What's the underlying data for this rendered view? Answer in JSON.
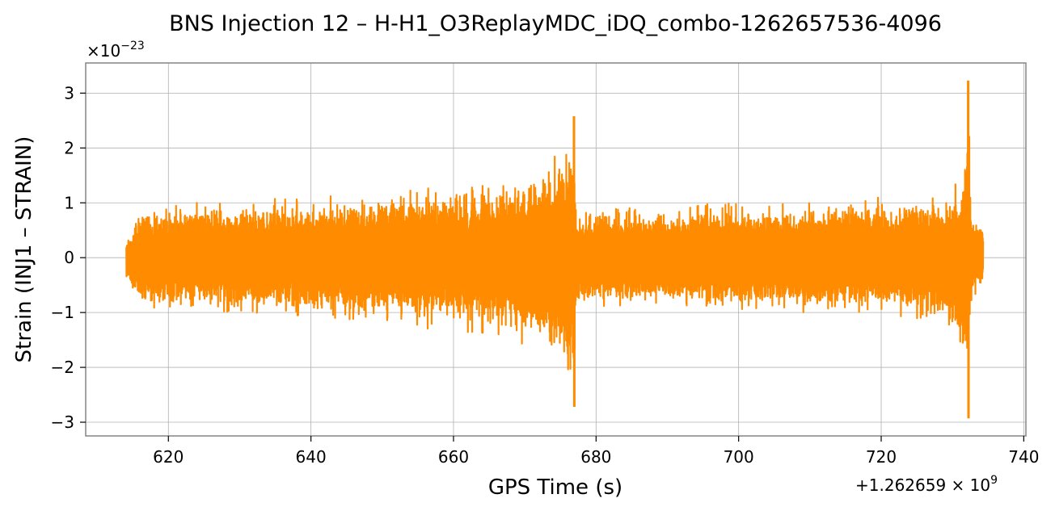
{
  "chart_data": {
    "type": "line",
    "title": "BNS Injection 12 – H-H1_O3ReplayMDC_iDQ_combo-1262657536-4096",
    "xlabel": "GPS Time (s)",
    "ylabel": "Strain (INJ1 – STRAIN)",
    "x_offset_label": "+1.262659 × 10",
    "x_offset_exponent": "9",
    "y_scale_label": "×10",
    "y_scale_exponent": "−23",
    "xlim": [
      608.4,
      740.3
    ],
    "ylim": [
      -3.25,
      3.55
    ],
    "x_ticks": [
      620,
      640,
      660,
      680,
      700,
      720,
      740
    ],
    "x_tick_labels": [
      "620",
      "640",
      "660",
      "680",
      "700",
      "720",
      "740"
    ],
    "y_ticks": [
      -3,
      -2,
      -1,
      0,
      1,
      2,
      3
    ],
    "y_tick_labels": [
      "−3",
      "−2",
      "−1",
      "0",
      "1",
      "2",
      "3"
    ],
    "grid": true,
    "series": [
      {
        "color": "#ff8c00",
        "x_start": 614.1,
        "x_end": 734.3,
        "envelope": {
          "x": [
            614.1,
            616.0,
            620.0,
            630.0,
            640.0,
            650.0,
            660.0,
            665.0,
            670.0,
            673.0,
            675.0,
            676.5,
            676.9,
            677.2,
            680.0,
            690.0,
            700.0,
            710.0,
            720.0,
            725.0,
            728.0,
            730.0,
            731.5,
            732.2,
            732.6,
            733.0,
            734.3
          ],
          "upper": [
            0.35,
            0.95,
            1.0,
            1.05,
            1.1,
            1.2,
            1.35,
            1.45,
            1.6,
            1.75,
            1.95,
            2.2,
            2.58,
            0.9,
            0.9,
            0.95,
            1.0,
            1.0,
            1.1,
            1.15,
            1.2,
            1.3,
            1.7,
            3.23,
            0.9,
            0.75,
            0.65
          ],
          "lower": [
            -0.45,
            -0.95,
            -1.0,
            -1.05,
            -1.1,
            -1.2,
            -1.35,
            -1.45,
            -1.6,
            -1.8,
            -2.05,
            -2.35,
            -2.72,
            -0.95,
            -0.95,
            -0.95,
            -1.0,
            -1.0,
            -1.05,
            -1.15,
            -1.25,
            -1.45,
            -1.9,
            -2.93,
            -0.85,
            -0.75,
            -0.6
          ]
        }
      }
    ]
  }
}
